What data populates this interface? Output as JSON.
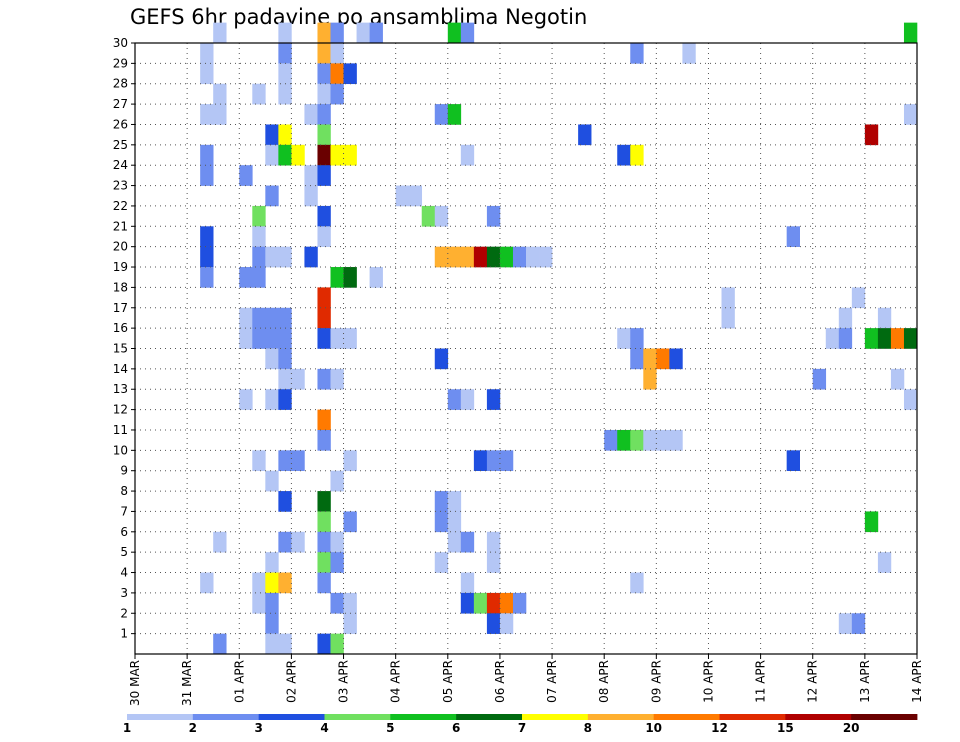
{
  "chart_data": {
    "type": "heatmap",
    "title": "GEFS 6hr padavine po ansamblima Negotin",
    "x_tick_labels": [
      "30 MAR",
      "31 MAR",
      "01 APR",
      "02 APR",
      "03 APR",
      "04 APR",
      "05 APR",
      "06 APR",
      "07 APR",
      "08 APR",
      "09 APR",
      "10 APR",
      "11 APR",
      "12 APR",
      "13 APR",
      "14 APR"
    ],
    "y_tick_labels": [
      "1",
      "2",
      "3",
      "4",
      "5",
      "6",
      "7",
      "8",
      "9",
      "10",
      "11",
      "12",
      "13",
      "14",
      "15",
      "16",
      "17",
      "18",
      "19",
      "20",
      "21",
      "22",
      "23",
      "24",
      "25",
      "26",
      "27",
      "28",
      "29",
      "30"
    ],
    "x_unit": "6hr step",
    "xlim": [
      0,
      60
    ],
    "ylim": [
      0,
      30
    ],
    "grid": true,
    "legend": {
      "placement": "bottom",
      "labels": [
        "1",
        "2",
        "3",
        "4",
        "5",
        "6",
        "7",
        "8",
        "10",
        "12",
        "15",
        "20"
      ],
      "colors": [
        "#b4c6f5",
        "#6e8ef0",
        "#1f4fe0",
        "#70e060",
        "#10c020",
        "#006a10",
        "#ffff00",
        "#ffb030",
        "#ff7a00",
        "#e02a00",
        "#b00000",
        "#6a0000"
      ]
    },
    "cells": [
      [
        6,
        30,
        0
      ],
      [
        11,
        30,
        0
      ],
      [
        14,
        30,
        7
      ],
      [
        15,
        30,
        1
      ],
      [
        17,
        30,
        0
      ],
      [
        18,
        30,
        1
      ],
      [
        24,
        30,
        4
      ],
      [
        25,
        30,
        1
      ],
      [
        59,
        30,
        4
      ],
      [
        5,
        29,
        0
      ],
      [
        11,
        29,
        1
      ],
      [
        14,
        29,
        7
      ],
      [
        15,
        29,
        0
      ],
      [
        38,
        29,
        1
      ],
      [
        42,
        29,
        0
      ],
      [
        5,
        28,
        0
      ],
      [
        11,
        28,
        0
      ],
      [
        14,
        28,
        1
      ],
      [
        15,
        28,
        8
      ],
      [
        16,
        28,
        2
      ],
      [
        6,
        27,
        0
      ],
      [
        9,
        27,
        0
      ],
      [
        11,
        27,
        0
      ],
      [
        14,
        27,
        0
      ],
      [
        15,
        27,
        1
      ],
      [
        5,
        26,
        0
      ],
      [
        6,
        26,
        0
      ],
      [
        13,
        26,
        0
      ],
      [
        14,
        26,
        1
      ],
      [
        23,
        26,
        1
      ],
      [
        24,
        26,
        4
      ],
      [
        59,
        26,
        0
      ],
      [
        10,
        25,
        2
      ],
      [
        11,
        25,
        6
      ],
      [
        14,
        25,
        3
      ],
      [
        34,
        25,
        2
      ],
      [
        56,
        25,
        10
      ],
      [
        5,
        24,
        1
      ],
      [
        10,
        24,
        0
      ],
      [
        11,
        24,
        4
      ],
      [
        12,
        24,
        6
      ],
      [
        14,
        24,
        11
      ],
      [
        15,
        24,
        6
      ],
      [
        16,
        24,
        6
      ],
      [
        25,
        24,
        0
      ],
      [
        37,
        24,
        2
      ],
      [
        38,
        24,
        6
      ],
      [
        5,
        23,
        1
      ],
      [
        8,
        23,
        1
      ],
      [
        13,
        23,
        0
      ],
      [
        14,
        23,
        2
      ],
      [
        10,
        22,
        1
      ],
      [
        13,
        22,
        0
      ],
      [
        20,
        22,
        0
      ],
      [
        21,
        22,
        0
      ],
      [
        9,
        21,
        3
      ],
      [
        14,
        21,
        2
      ],
      [
        22,
        21,
        3
      ],
      [
        23,
        21,
        0
      ],
      [
        27,
        21,
        1
      ],
      [
        5,
        20,
        2
      ],
      [
        9,
        20,
        0
      ],
      [
        14,
        20,
        0
      ],
      [
        50,
        20,
        1
      ],
      [
        5,
        19,
        2
      ],
      [
        9,
        19,
        1
      ],
      [
        10,
        19,
        0
      ],
      [
        11,
        19,
        0
      ],
      [
        13,
        19,
        2
      ],
      [
        23,
        19,
        7
      ],
      [
        24,
        19,
        7
      ],
      [
        25,
        19,
        7
      ],
      [
        26,
        19,
        10
      ],
      [
        27,
        19,
        5
      ],
      [
        28,
        19,
        4
      ],
      [
        29,
        19,
        1
      ],
      [
        30,
        19,
        0
      ],
      [
        31,
        19,
        0
      ],
      [
        5,
        18,
        1
      ],
      [
        8,
        18,
        1
      ],
      [
        9,
        18,
        1
      ],
      [
        15,
        18,
        4
      ],
      [
        16,
        18,
        5
      ],
      [
        18,
        18,
        0
      ],
      [
        14,
        17,
        9
      ],
      [
        45,
        17,
        0
      ],
      [
        55,
        17,
        0
      ],
      [
        8,
        16,
        0
      ],
      [
        9,
        16,
        1
      ],
      [
        10,
        16,
        1
      ],
      [
        11,
        16,
        1
      ],
      [
        14,
        16,
        9
      ],
      [
        45,
        16,
        0
      ],
      [
        54,
        16,
        0
      ],
      [
        57,
        16,
        0
      ],
      [
        8,
        15,
        0
      ],
      [
        9,
        15,
        1
      ],
      [
        10,
        15,
        1
      ],
      [
        11,
        15,
        1
      ],
      [
        14,
        15,
        2
      ],
      [
        15,
        15,
        0
      ],
      [
        16,
        15,
        0
      ],
      [
        37,
        15,
        0
      ],
      [
        38,
        15,
        1
      ],
      [
        53,
        15,
        0
      ],
      [
        54,
        15,
        1
      ],
      [
        56,
        15,
        4
      ],
      [
        57,
        15,
        5
      ],
      [
        58,
        15,
        8
      ],
      [
        59,
        15,
        5
      ],
      [
        10,
        14,
        0
      ],
      [
        11,
        14,
        1
      ],
      [
        23,
        14,
        2
      ],
      [
        38,
        14,
        1
      ],
      [
        39,
        14,
        7
      ],
      [
        40,
        14,
        8
      ],
      [
        41,
        14,
        2
      ],
      [
        11,
        13,
        0
      ],
      [
        12,
        13,
        0
      ],
      [
        14,
        13,
        1
      ],
      [
        15,
        13,
        0
      ],
      [
        39,
        13,
        7
      ],
      [
        52,
        13,
        1
      ],
      [
        58,
        13,
        0
      ],
      [
        8,
        12,
        0
      ],
      [
        10,
        12,
        0
      ],
      [
        11,
        12,
        2
      ],
      [
        24,
        12,
        1
      ],
      [
        25,
        12,
        0
      ],
      [
        27,
        12,
        2
      ],
      [
        59,
        12,
        0
      ],
      [
        14,
        11,
        8
      ],
      [
        14,
        10,
        1
      ],
      [
        36,
        10,
        1
      ],
      [
        37,
        10,
        4
      ],
      [
        38,
        10,
        3
      ],
      [
        39,
        10,
        0
      ],
      [
        40,
        10,
        0
      ],
      [
        41,
        10,
        0
      ],
      [
        9,
        9,
        0
      ],
      [
        11,
        9,
        1
      ],
      [
        12,
        9,
        1
      ],
      [
        16,
        9,
        0
      ],
      [
        26,
        9,
        2
      ],
      [
        27,
        9,
        1
      ],
      [
        28,
        9,
        1
      ],
      [
        50,
        9,
        2
      ],
      [
        10,
        8,
        0
      ],
      [
        15,
        8,
        0
      ],
      [
        11,
        7,
        2
      ],
      [
        14,
        7,
        5
      ],
      [
        23,
        7,
        1
      ],
      [
        24,
        7,
        0
      ],
      [
        14,
        6,
        3
      ],
      [
        16,
        6,
        1
      ],
      [
        23,
        6,
        1
      ],
      [
        24,
        6,
        0
      ],
      [
        56,
        6,
        4
      ],
      [
        6,
        5,
        0
      ],
      [
        11,
        5,
        1
      ],
      [
        12,
        5,
        0
      ],
      [
        14,
        5,
        1
      ],
      [
        15,
        5,
        0
      ],
      [
        24,
        5,
        0
      ],
      [
        25,
        5,
        1
      ],
      [
        27,
        5,
        0
      ],
      [
        10,
        4,
        0
      ],
      [
        14,
        4,
        3
      ],
      [
        15,
        4,
        1
      ],
      [
        23,
        4,
        0
      ],
      [
        27,
        4,
        0
      ],
      [
        57,
        4,
        0
      ],
      [
        5,
        3,
        0
      ],
      [
        9,
        3,
        0
      ],
      [
        10,
        3,
        6
      ],
      [
        11,
        3,
        7
      ],
      [
        14,
        3,
        1
      ],
      [
        25,
        3,
        0
      ],
      [
        38,
        3,
        0
      ],
      [
        9,
        2,
        0
      ],
      [
        10,
        2,
        1
      ],
      [
        15,
        2,
        1
      ],
      [
        16,
        2,
        0
      ],
      [
        25,
        2,
        2
      ],
      [
        26,
        2,
        3
      ],
      [
        27,
        2,
        9
      ],
      [
        28,
        2,
        8
      ],
      [
        29,
        2,
        1
      ],
      [
        10,
        1,
        1
      ],
      [
        16,
        1,
        0
      ],
      [
        27,
        1,
        2
      ],
      [
        28,
        1,
        0
      ],
      [
        54,
        1,
        0
      ],
      [
        55,
        1,
        1
      ],
      [
        6,
        0,
        1
      ],
      [
        10,
        0,
        0
      ],
      [
        11,
        0,
        0
      ],
      [
        14,
        0,
        2
      ],
      [
        15,
        0,
        3
      ]
    ]
  }
}
